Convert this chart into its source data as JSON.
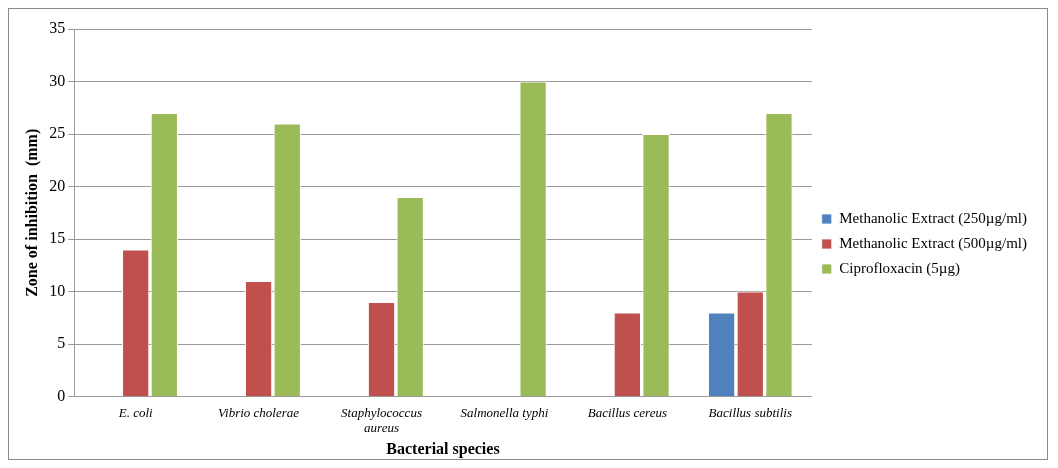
{
  "chart_data": {
    "type": "bar",
    "xlabel": "Bacterial species",
    "ylabel": "Zone of inhibition  (mm)",
    "categories": [
      "E. coli",
      "Vibrio cholerae",
      "Staphylococcus aureus",
      "Salmonella typhi",
      "Bacillus cereus",
      "Bacillus subtilis"
    ],
    "series": [
      {
        "name": "Methanolic Extract (250µg/ml)",
        "color": "#4f81bd",
        "values": [
          0,
          0,
          0,
          0,
          0,
          8
        ]
      },
      {
        "name": "Methanolic Extract (500µg/ml)",
        "color": "#c0504d",
        "values": [
          14,
          11,
          9,
          0,
          8,
          10
        ]
      },
      {
        "name": "Ciprofloxacin (5µg)",
        "color": "#9bbb59",
        "values": [
          27,
          26,
          19,
          30,
          25,
          27
        ]
      }
    ],
    "ylim": [
      0,
      35
    ],
    "yticks": [
      0,
      5,
      10,
      15,
      20,
      25,
      30,
      35
    ],
    "grid": "y",
    "legend": "right"
  }
}
